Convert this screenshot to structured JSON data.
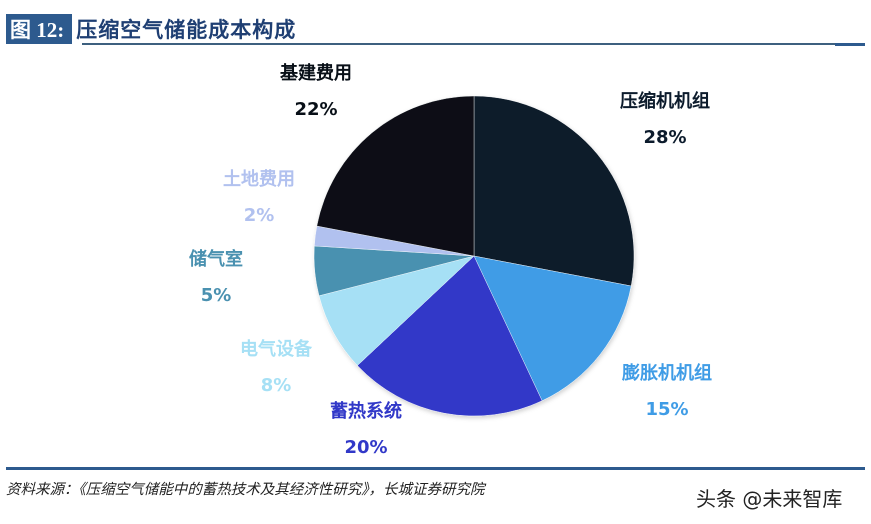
{
  "header": {
    "figure_tag": "图 12:",
    "title": "压缩空气储能成本构成"
  },
  "footer": {
    "source": "资料来源：《压缩空气储能中的蓄热技术及其经济性研究》，长城证券研究院",
    "watermark": "头条 @未来智库"
  },
  "colors": {
    "header_bg": "#2d5a8e",
    "title_text": "#1f3f73"
  },
  "labels": [
    {
      "name": "压缩机机组",
      "pct": "28%",
      "color": "#0c1b2c"
    },
    {
      "name": "膨胀机机组",
      "pct": "15%",
      "color": "#3f9ce6"
    },
    {
      "name": "蓄热系统",
      "pct": "20%",
      "color": "#3138c8"
    },
    {
      "name": "电气设备",
      "pct": "8%",
      "color": "#a6e0f5"
    },
    {
      "name": "储气室",
      "pct": "5%",
      "color": "#4a91b0"
    },
    {
      "name": "土地费用",
      "pct": "2%",
      "color": "#b1c1ef"
    },
    {
      "name": "基建费用",
      "pct": "22%",
      "color": "#080f17"
    }
  ],
  "chart_data": {
    "type": "pie",
    "title": "压缩空气储能成本构成",
    "categories": [
      "压缩机机组",
      "膨胀机机组",
      "蓄热系统",
      "电气设备",
      "储气室",
      "土地费用",
      "基建费用"
    ],
    "values": [
      28,
      15,
      20,
      8,
      5,
      2,
      22
    ],
    "unit": "%",
    "colors": [
      "#0c1b2c",
      "#3f9ce6",
      "#3138c8",
      "#a6e0f5",
      "#4a91b0",
      "#b1c1ef",
      "#080f17"
    ],
    "start_angle": "12 o'clock",
    "direction": "clockwise",
    "legend": "none (data labels outside slices)"
  }
}
